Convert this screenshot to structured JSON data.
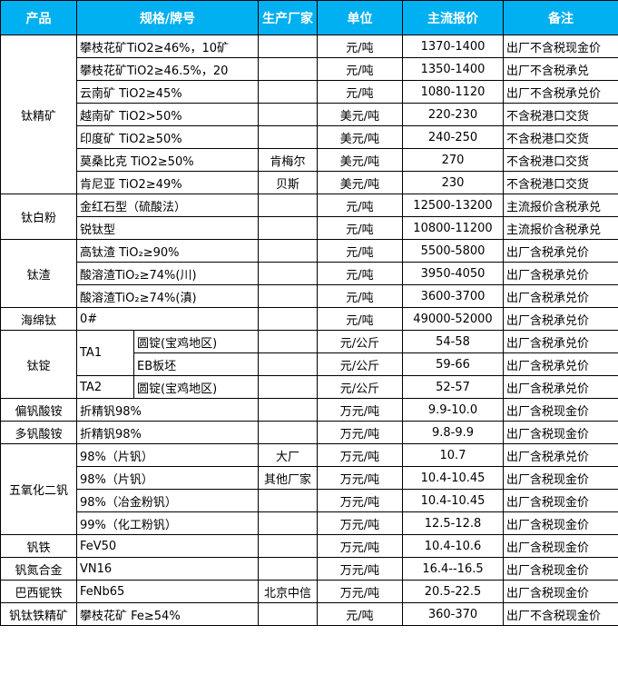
{
  "header": {
    "product": "产品",
    "spec": "规格/牌号",
    "maker": "生产厂家",
    "unit": "单位",
    "price": "主流报价",
    "note": "备注"
  },
  "accent_color": "#00b0f0",
  "groups": [
    {
      "product": "钛精矿",
      "items": [
        {
          "spec": "攀枝花矿TiO2≥46%，10矿",
          "maker": "",
          "unit": "元/吨",
          "price": "1370-1400",
          "note": "出厂不含税现金价"
        },
        {
          "spec": "攀枝花矿TiO2≥46.5%，20",
          "maker": "",
          "unit": "元/吨",
          "price": "1350-1400",
          "note": "出厂不含税承兑"
        },
        {
          "spec": "云南矿 TiO2≥45%",
          "maker": "",
          "unit": "元/吨",
          "price": "1080-1120",
          "note": "出厂不含税承兑价"
        },
        {
          "spec": "越南矿 TiO2>50%",
          "maker": "",
          "unit": "美元/吨",
          "price": "220-230",
          "note": "不含税港口交货"
        },
        {
          "spec": "印度矿 TiO2≥50%",
          "maker": "",
          "unit": "美元/吨",
          "price": "240-250",
          "note": "不含税港口交货"
        },
        {
          "spec": "莫桑比克 TiO2≥50%",
          "maker": "肯梅尔",
          "unit": "美元/吨",
          "price": "270",
          "note": "不含税港口交货"
        },
        {
          "spec": "肯尼亚 TiO2≥49%",
          "maker": "贝斯",
          "unit": "美元/吨",
          "price": "230",
          "note": "不含税港口交货"
        }
      ]
    },
    {
      "product": "钛白粉",
      "items": [
        {
          "spec": "金红石型（硫酸法）",
          "maker": "",
          "unit": "元/吨",
          "price": "12500-13200",
          "note": "主流报价含税承兑"
        },
        {
          "spec": "锐钛型",
          "maker": "",
          "unit": "元/吨",
          "price": "10800-11200",
          "note": "主流报价含税承兑"
        }
      ]
    },
    {
      "product": "钛渣",
      "items": [
        {
          "spec": "高钛渣 TiO₂≥90%",
          "maker": "",
          "unit": "元/吨",
          "price": "5500-5800",
          "note": "出厂含税承兑价"
        },
        {
          "spec": "酸溶渣TiO₂≥74%(川)",
          "maker": "",
          "unit": "元/吨",
          "price": "3950-4050",
          "note": "出厂含税承兑价"
        },
        {
          "spec": "酸溶渣TiO₂≥74%(滇)",
          "maker": "",
          "unit": "元/吨",
          "price": "3600-3700",
          "note": "出厂含税承兑价"
        }
      ]
    },
    {
      "product": "海绵钛",
      "items": [
        {
          "spec": "0#",
          "maker": "",
          "unit": "元/吨",
          "price": "49000-52000",
          "note": "出厂含税承兑价"
        }
      ]
    },
    {
      "product": "钛锭",
      "items": [
        {
          "grade": "TA1",
          "spec": "圆锭(宝鸡地区)",
          "maker": "",
          "unit": "元/公斤",
          "price": "54-58",
          "note": "出厂含税承兑价"
        },
        {
          "grade": "TA1",
          "spec": "EB板坯",
          "maker": "",
          "unit": "元/公斤",
          "price": "59-66",
          "note": "出厂含税承兑价"
        },
        {
          "grade": "TA2",
          "spec": "圆锭(宝鸡地区)",
          "maker": "",
          "unit": "元/公斤",
          "price": "52-57",
          "note": "出厂含税承兑价"
        }
      ]
    },
    {
      "product": "偏钒酸铵",
      "items": [
        {
          "spec": "折精钒98%",
          "maker": "",
          "unit": "万元/吨",
          "price": "9.9-10.0",
          "note": "出厂含税现金价"
        }
      ]
    },
    {
      "product": "多钒酸铵",
      "items": [
        {
          "spec": "折精钒98%",
          "maker": "",
          "unit": "万元/吨",
          "price": "9.8-9.9",
          "note": "出厂含税现金价"
        }
      ]
    },
    {
      "product": "五氧化二钒",
      "items": [
        {
          "spec": "98%（片钒）",
          "maker": "大厂",
          "unit": "万元/吨",
          "price": "10.7",
          "note": "出厂含税承兑价"
        },
        {
          "spec": "98%（片钒）",
          "maker": "其他厂家",
          "unit": "万元/吨",
          "price": "10.4-10.45",
          "note": "出厂含税现金价"
        },
        {
          "spec": "98%（冶金粉钒）",
          "maker": "",
          "unit": "万元/吨",
          "price": "10.4-10.45",
          "note": "出厂含税现金价"
        },
        {
          "spec": "99%（化工粉钒）",
          "maker": "",
          "unit": "万元/吨",
          "price": "12.5-12.8",
          "note": "出厂含税现金价"
        }
      ]
    },
    {
      "product": "钒铁",
      "items": [
        {
          "spec": "FeV50",
          "maker": "",
          "unit": "万元/吨",
          "price": "10.4-10.6",
          "note": "出厂含税现金价"
        }
      ]
    },
    {
      "product": "钒氮合金",
      "items": [
        {
          "spec": "VN16",
          "maker": "",
          "unit": "万元/吨",
          "price": "16.4--16.5",
          "note": "出厂含税现金价"
        }
      ]
    },
    {
      "product": "巴西铌铁",
      "items": [
        {
          "spec": "FeNb65",
          "maker": "北京中信",
          "unit": "万元/吨",
          "price": "20.5-22.5",
          "note": "出厂含税现金价"
        }
      ]
    },
    {
      "product": "钒钛铁精矿",
      "items": [
        {
          "spec": "攀枝花矿 Fe≥54%",
          "maker": "",
          "unit": "元/吨",
          "price": "360-370",
          "note": "出厂不含税现金价"
        }
      ]
    }
  ]
}
